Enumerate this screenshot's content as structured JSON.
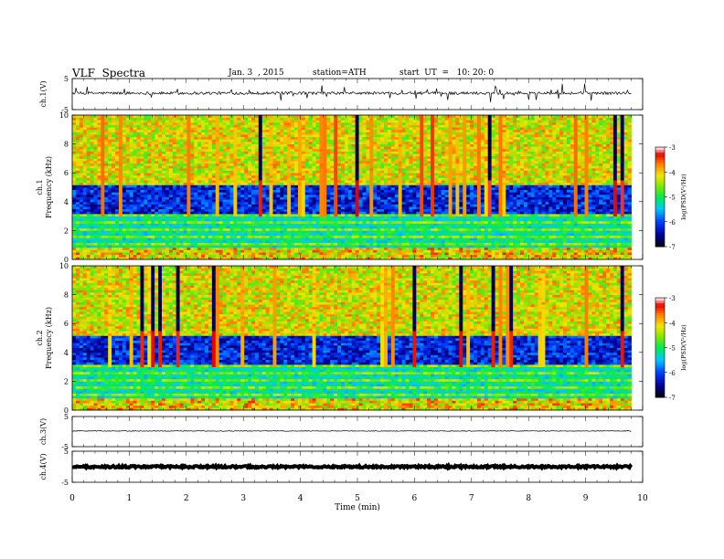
{
  "header": {
    "title": "VLF  Spectra",
    "date": "Jan. 3  , 2015",
    "station": "station=ATH",
    "start": "start  UT  =   10: 20: 0"
  },
  "chart_data": [
    {
      "type": "line",
      "ylabel": "ch.1(V)",
      "ylim": [
        -5,
        5
      ],
      "yticks": [
        "5",
        "-5"
      ],
      "xlim": [
        0,
        10
      ],
      "baseline": 0.3,
      "color": "#000000"
    },
    {
      "type": "heatmap",
      "ylabel": "ch.1\nFrequency (kHz)",
      "ylim": [
        0,
        10
      ],
      "yticks": [
        "0",
        "2",
        "4",
        "6",
        "8",
        "10"
      ],
      "xlim": [
        0,
        10
      ],
      "data_end_min": 9.8,
      "colorbar": {
        "label": "log(PSD(V²/Hz)",
        "ticks": [
          "-3",
          "-4",
          "-5",
          "-6",
          "-7"
        ],
        "range": [
          -7,
          -3
        ]
      }
    },
    {
      "type": "heatmap",
      "ylabel": "ch.2\nFrequency (kHz)",
      "ylim": [
        0,
        10
      ],
      "yticks": [
        "0",
        "2",
        "4",
        "6",
        "8",
        "10"
      ],
      "xlim": [
        0,
        10
      ],
      "data_end_min": 9.8,
      "colorbar": {
        "label": "log(PSD(V²/Hz)",
        "ticks": [
          "-3",
          "-4",
          "-5",
          "-6",
          "-7"
        ],
        "range": [
          -7,
          -3
        ]
      }
    },
    {
      "type": "line",
      "ylabel": "ch.3(V)",
      "ylim": [
        -5,
        5
      ],
      "yticks": [
        "5",
        "-5"
      ],
      "xlim": [
        0,
        10
      ],
      "baseline": 0.2,
      "color": "#000000"
    },
    {
      "type": "line",
      "ylabel": "ch.4(V)",
      "ylim": [
        -5,
        5
      ],
      "yticks": [
        "5",
        "-5"
      ],
      "xlim": [
        0,
        10
      ],
      "baseline": 0.0,
      "color": "#000000"
    }
  ],
  "xaxis": {
    "label": "Time  (min)",
    "ticks": [
      "0",
      "1",
      "2",
      "3",
      "4",
      "5",
      "6",
      "7",
      "8",
      "9",
      "10"
    ]
  }
}
